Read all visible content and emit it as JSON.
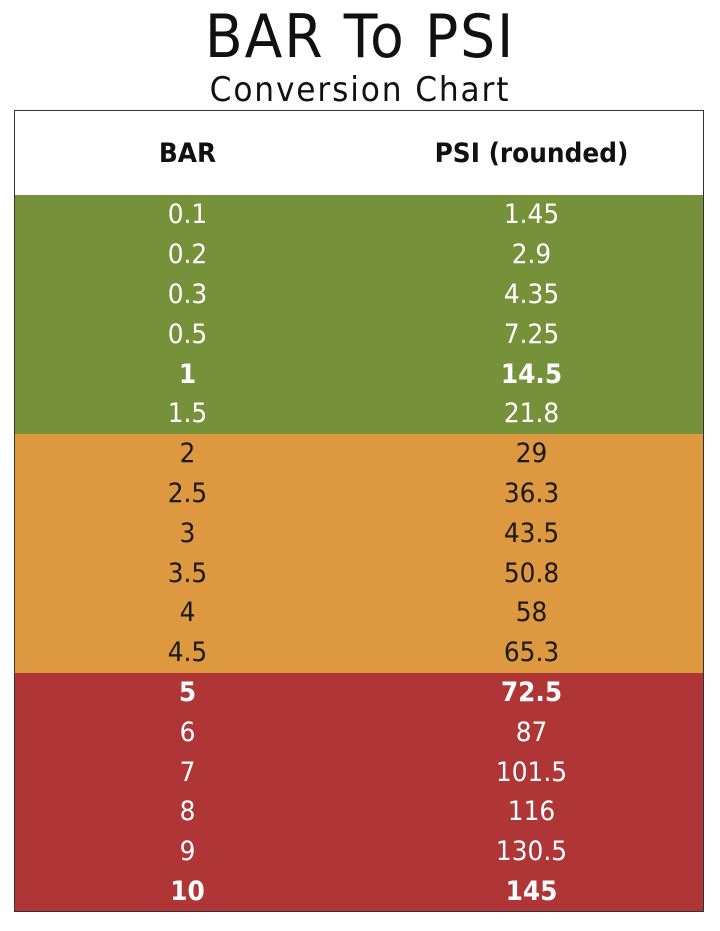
{
  "header": {
    "title": "BAR To PSI",
    "subtitle": "Conversion Chart"
  },
  "table": {
    "columns": [
      "BAR",
      "PSI (rounded)"
    ],
    "groups": [
      {
        "color": "#77903a",
        "text_color": "#ffffff",
        "bold_rows": [
          4
        ],
        "rows": [
          [
            "0.1",
            "1.45"
          ],
          [
            "0.2",
            "2.9"
          ],
          [
            "0.3",
            "4.35"
          ],
          [
            "0.5",
            "7.25"
          ],
          [
            "1",
            "14.5"
          ],
          [
            "1.5",
            "21.8"
          ]
        ]
      },
      {
        "color": "#de983f",
        "text_color": "#1a1a1a",
        "bold_rows": [],
        "rows": [
          [
            "2",
            "29"
          ],
          [
            "2.5",
            "36.3"
          ],
          [
            "3",
            "43.5"
          ],
          [
            "3.5",
            "50.8"
          ],
          [
            "4",
            "58"
          ],
          [
            "4.5",
            "65.3"
          ]
        ]
      },
      {
        "color": "#b03537",
        "text_color": "#ffffff",
        "bold_rows": [
          0,
          5
        ],
        "rows": [
          [
            "5",
            "72.5"
          ],
          [
            "6",
            "87"
          ],
          [
            "7",
            "101.5"
          ],
          [
            "8",
            "116"
          ],
          [
            "9",
            "130.5"
          ],
          [
            "10",
            "145"
          ]
        ]
      }
    ]
  }
}
